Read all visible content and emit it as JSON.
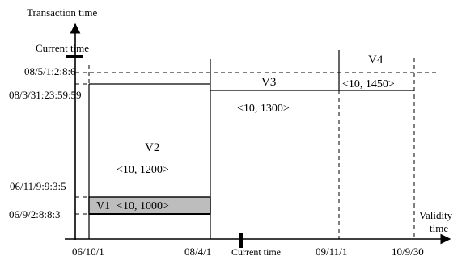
{
  "axes": {
    "y_label": "Transaction time",
    "x_label_line1": "Validity",
    "x_label_line2": "time",
    "current_time_y": "Current time",
    "current_time_x": "Current time"
  },
  "y_ticks": [
    "08/5/1:2:8:6",
    "08/3/31:23:59:59",
    "06/11/9:9:3:5",
    "06/9/2:8:8:3"
  ],
  "x_ticks": [
    "06/10/1",
    "08/4/1",
    "09/11/1",
    "10/9/30"
  ],
  "versions": {
    "v1": {
      "name": "V1",
      "value": "<10, 1000>"
    },
    "v2": {
      "name": "V2",
      "value": "<10, 1200>"
    },
    "v3": {
      "name": "V3",
      "value": "<10, 1300>"
    },
    "v4": {
      "name": "V4",
      "value": "<10, 1450>"
    }
  },
  "colors": {
    "v1_fill": "#bdbdbd",
    "line": "#000000"
  }
}
